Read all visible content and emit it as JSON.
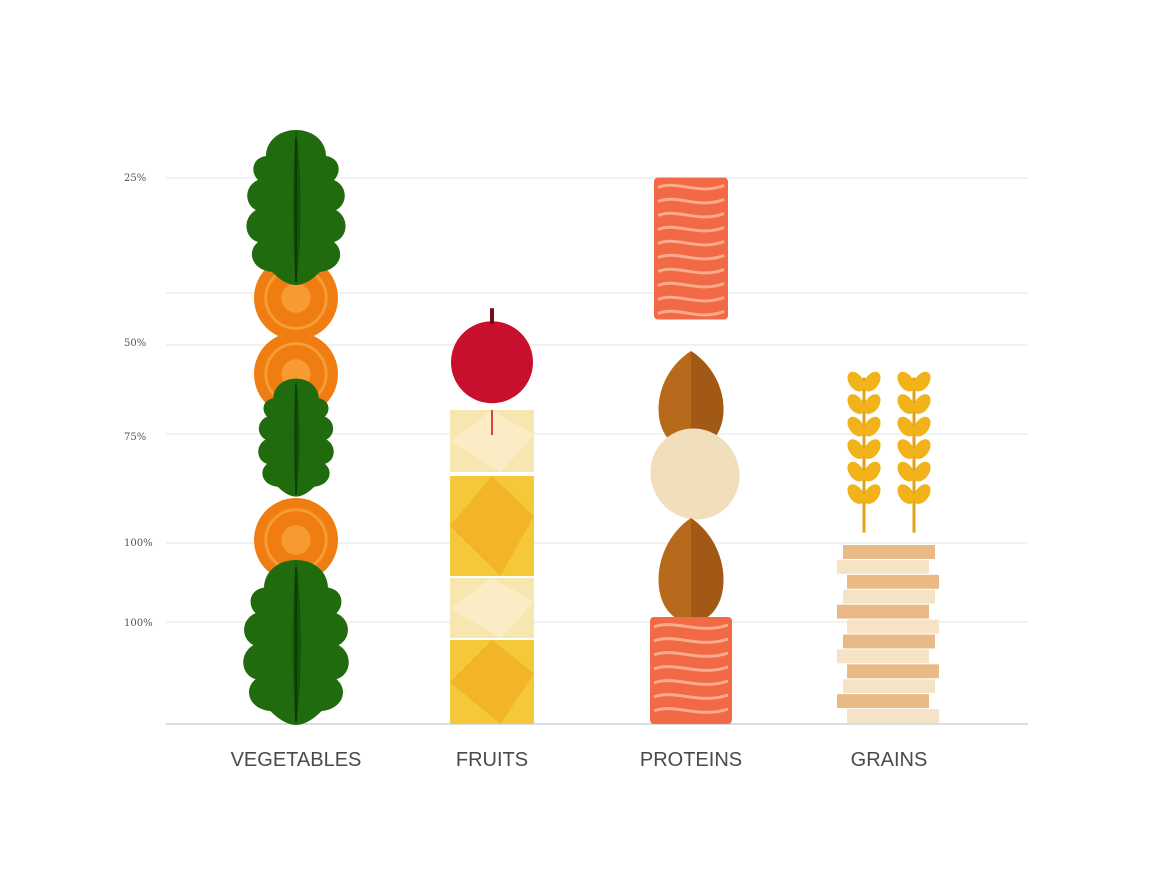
{
  "chart_data": {
    "type": "bar",
    "title": "",
    "xlabel": "",
    "ylabel": "",
    "categories": [
      "VEGETABLES",
      "FRUITS",
      "PROTEINS",
      "GRAINS"
    ],
    "y_tick_labels": [
      "25%",
      "50%",
      "75%",
      "100%",
      "100%"
    ],
    "values_percent": [
      25,
      17.5,
      23,
      15
    ],
    "grid": true,
    "legend": "none",
    "colors": {
      "leaf": "#1f6b0e",
      "leaf_mid": "#0f4a06",
      "carrot": "#f07d12",
      "carrot_ring": "#f9a43c",
      "apple": "#c8102e",
      "fruit_yellow": "#f5c73a",
      "fruit_light": "#f8e6b0",
      "salmon": "#f26a45",
      "nut_brown": "#b86a1c",
      "nut_light": "#f1dfbc",
      "wheat": "#f2b21a",
      "bread": "#e9b986",
      "bread_light": "#f6e2c4",
      "grid": "#e3e6ea",
      "baseline": "#c9d4de"
    }
  }
}
